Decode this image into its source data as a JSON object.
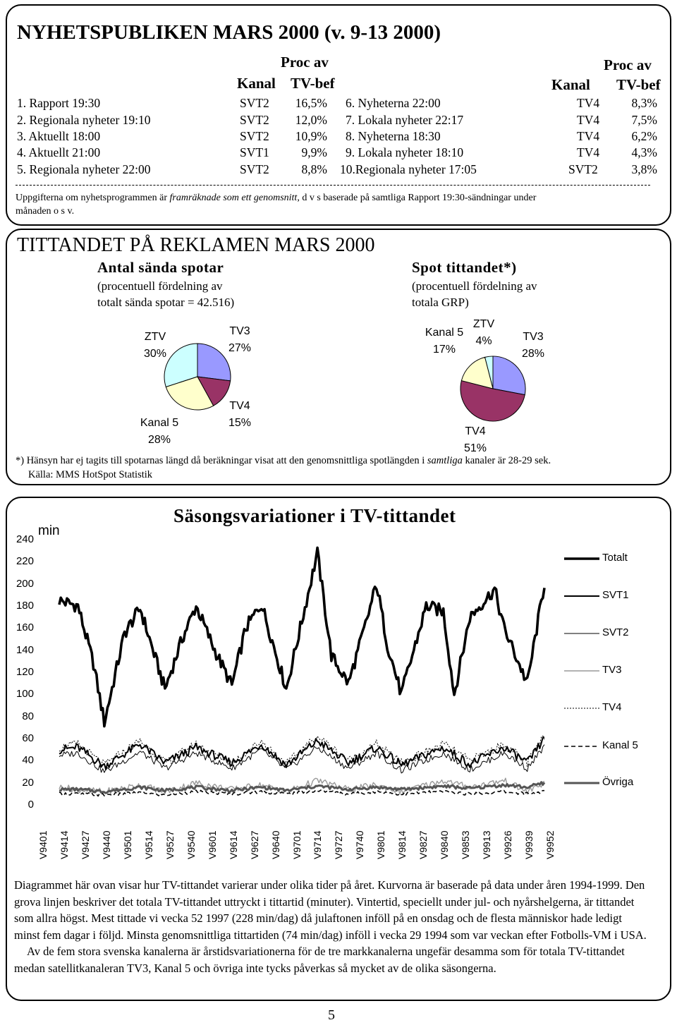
{
  "news": {
    "title": "NYHETSPUBLIKEN MARS 2000 (v. 9-13 2000)",
    "col_proc_av": "Proc av",
    "col_kanal": "Kanal",
    "col_tvbef": "TV-bef",
    "left_rows": [
      {
        "name": "1. Rapport 19:30",
        "kanal": "SVT2",
        "pct": "16,5%"
      },
      {
        "name": "2. Regionala nyheter 19:10",
        "kanal": "SVT2",
        "pct": "12,0%"
      },
      {
        "name": "3. Aktuellt 18:00",
        "kanal": "SVT2",
        "pct": "10,9%"
      },
      {
        "name": "4. Aktuellt 21:00",
        "kanal": "SVT1",
        "pct": "9,9%"
      },
      {
        "name": "5. Regionala nyheter 22:00",
        "kanal": "SVT2",
        "pct": "8,8%"
      }
    ],
    "right_rows": [
      {
        "name": "6. Nyheterna 22:00",
        "kanal": "TV4",
        "pct": "8,3%"
      },
      {
        "name": "7. Lokala nyheter 22:17",
        "kanal": "TV4",
        "pct": "7,5%"
      },
      {
        "name": "8. Nyheterna 18:30",
        "kanal": "TV4",
        "pct": "6,2%"
      },
      {
        "name": "9. Lokala nyheter 18:10",
        "kanal": "TV4",
        "pct": "4,3%"
      },
      {
        "name": "10.Regionala nyheter 17:05",
        "kanal": "SVT2",
        "pct": "3,8%"
      }
    ],
    "note_part1": "Uppgifterna om nyhetsprogrammen är ",
    "note_italic": "framräknade som ett genomsnitt",
    "note_part2": ", d v s baserade på samtliga Rapport 19:30-sändningar under",
    "note_line2": "månaden o s v."
  },
  "ads": {
    "title": "TITTANDET PÅ REKLAMEN MARS 2000",
    "left_heading": "Antal sända spotar",
    "left_sub1": "(procentuell fördelning av",
    "left_sub2": "totalt sända spotar = 42.516)",
    "right_heading": "Spot tittandet*)",
    "right_sub1": "(procentuell fördelning av",
    "right_sub2": "totala GRP)",
    "footnote_part1": "*) Hänsyn har ej tagits till spotarnas längd då beräkningar visat att den genomsnittliga spotlängden i ",
    "footnote_italic": "samtliga",
    "footnote_part2": " kanaler är 28-29 sek.",
    "source": "Källa: MMS HotSpot Statistik"
  },
  "chart_data": [
    {
      "type": "pie",
      "labels": [
        "ZTV",
        "TV3",
        "TV4",
        "Kanal 5"
      ],
      "values": [
        30,
        27,
        15,
        28
      ],
      "value_labels": [
        "30%",
        "27%",
        "15%",
        "28%"
      ],
      "colors": [
        "#ccffff",
        "#9999ff",
        "#993366",
        "#ffffcc"
      ]
    },
    {
      "type": "pie",
      "labels": [
        "ZTV",
        "TV3",
        "TV4",
        "Kanal 5"
      ],
      "values": [
        4,
        28,
        51,
        17
      ],
      "value_labels": [
        "4%",
        "28%",
        "51%",
        "17%"
      ],
      "colors": [
        "#ccffff",
        "#9999ff",
        "#993366",
        "#ffffcc"
      ]
    },
    {
      "type": "line",
      "title": "Säsongsvariationer i TV-tittandet",
      "ylabel": "min",
      "ylim": [
        0,
        240
      ],
      "yticks": [
        "0",
        "20",
        "40",
        "60",
        "80",
        "100",
        "120",
        "140",
        "160",
        "180",
        "200",
        "220",
        "240"
      ],
      "xticks": [
        "V9401",
        "V9414",
        "V9427",
        "V9440",
        "V9501",
        "V9514",
        "V9527",
        "V9540",
        "V9601",
        "V9614",
        "V9627",
        "V9640",
        "V9701",
        "V9714",
        "V9727",
        "V9740",
        "V9801",
        "V9814",
        "V9827",
        "V9840",
        "V9853",
        "V9913",
        "V9926",
        "V9939",
        "V9952"
      ],
      "x_range_weeks": [
        0,
        312
      ],
      "series": [
        {
          "name": "Totalt",
          "style": "thick-solid",
          "x": [
            0,
            12,
            22,
            29,
            42,
            52,
            62,
            68,
            79,
            88,
            100,
            111,
            120,
            130,
            146,
            155,
            166,
            175,
            186,
            198,
            204,
            211,
            220,
            236,
            247,
            254,
            264,
            280,
            286,
            301,
            312
          ],
          "y": [
            185,
            180,
            128,
            75,
            155,
            178,
            132,
            105,
            150,
            180,
            140,
            108,
            160,
            182,
            105,
            160,
            228,
            135,
            110,
            168,
            200,
            145,
            100,
            180,
            175,
            100,
            170,
            195,
            160,
            110,
            200
          ]
        },
        {
          "name": "SVT1",
          "style": "solid",
          "x": [
            0,
            12,
            29,
            52,
            68,
            88,
            111,
            130,
            146,
            166,
            186,
            204,
            220,
            247,
            264,
            286,
            301,
            312
          ],
          "y": [
            50,
            52,
            35,
            55,
            38,
            52,
            38,
            55,
            36,
            58,
            38,
            52,
            36,
            52,
            37,
            52,
            38,
            60
          ]
        },
        {
          "name": "SVT2",
          "style": "thin-solid",
          "x": [
            0,
            12,
            29,
            52,
            68,
            88,
            111,
            130,
            146,
            166,
            186,
            204,
            220,
            247,
            264,
            286,
            301,
            312
          ],
          "y": [
            45,
            47,
            30,
            48,
            33,
            47,
            33,
            50,
            32,
            52,
            33,
            47,
            31,
            47,
            32,
            47,
            33,
            53
          ]
        },
        {
          "name": "TV3",
          "style": "gray-solid",
          "x": [
            0,
            12,
            29,
            52,
            68,
            88,
            111,
            130,
            146,
            166,
            186,
            204,
            220,
            247,
            264,
            286,
            301,
            312
          ],
          "y": [
            16,
            14,
            12,
            18,
            12,
            20,
            14,
            18,
            12,
            22,
            14,
            18,
            12,
            22,
            16,
            22,
            12,
            20
          ]
        },
        {
          "name": "TV4",
          "style": "dotted",
          "x": [
            0,
            12,
            29,
            52,
            68,
            88,
            111,
            130,
            146,
            166,
            186,
            204,
            220,
            247,
            264,
            286,
            301,
            312
          ],
          "y": [
            52,
            55,
            36,
            58,
            38,
            55,
            38,
            58,
            37,
            62,
            40,
            55,
            38,
            55,
            40,
            55,
            38,
            62
          ]
        },
        {
          "name": "Kanal 5",
          "style": "dashed",
          "x": [
            0,
            12,
            29,
            52,
            68,
            88,
            111,
            130,
            146,
            166,
            186,
            204,
            220,
            247,
            264,
            286,
            301,
            312
          ],
          "y": [
            10,
            10,
            9,
            11,
            9,
            12,
            10,
            12,
            10,
            13,
            10,
            12,
            10,
            12,
            10,
            12,
            10,
            12
          ]
        },
        {
          "name": "Övriga",
          "style": "thick-gray",
          "x": [
            0,
            12,
            29,
            52,
            68,
            88,
            111,
            130,
            146,
            166,
            186,
            204,
            220,
            247,
            264,
            286,
            301,
            312
          ],
          "y": [
            14,
            14,
            12,
            16,
            13,
            16,
            13,
            16,
            13,
            17,
            14,
            16,
            14,
            17,
            15,
            18,
            16,
            20
          ]
        }
      ]
    }
  ],
  "season": {
    "p1": "Diagrammet här ovan visar hur TV-tittandet varierar under olika tider på året. Kurvorna är baserade på data under åren 1994-1999. Den grova linjen beskriver det totala TV-tittandet uttryckt i tittartid (minuter). Vintertid, speciellt under jul- och nyårshelgerna, är tittandet som allra högst. Mest tittade vi vecka 52 1997 (228 min/dag) då julaftonen inföll på en onsdag och de flesta människor hade ledigt minst fem dagar i följd. Minsta genomsnittliga tittartiden (74 min/dag) inföll i vecka 29 1994 som var veckan efter Fotbolls-VM i USA.",
    "p2": "Av de fem stora svenska kanalerna är årstidsvariationerna för de tre markkanalerna ungefär desamma som för totala TV-tittandet medan satellitkanaleran TV3, Kanal 5 och övriga inte tycks påverkas så mycket av de olika säsongerna."
  },
  "page_number": "5"
}
